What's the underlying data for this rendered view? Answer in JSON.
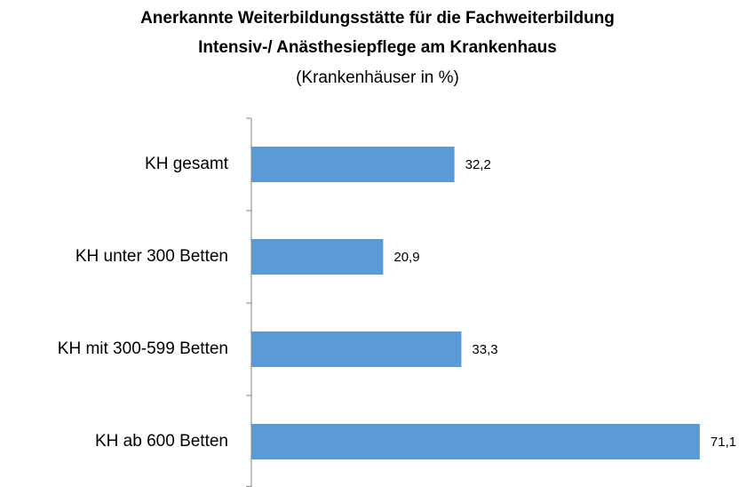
{
  "chart_data": {
    "type": "bar",
    "orientation": "horizontal",
    "title": [
      "Anerkannte Weiterbildungsstätte für die Fachweiterbildung",
      "Intensiv-/ Anästhesiepflege am Krankenhaus"
    ],
    "subtitle": "(Krankenhäuser in %)",
    "categories": [
      "KH gesamt",
      "KH unter 300 Betten",
      "KH mit 300-599 Betten",
      "KH ab 600 Betten"
    ],
    "values": [
      32.2,
      20.9,
      33.3,
      71.1
    ],
    "value_labels": [
      "32,2",
      "20,9",
      "33,3",
      "71,1"
    ],
    "color": "#5b9bd5"
  }
}
